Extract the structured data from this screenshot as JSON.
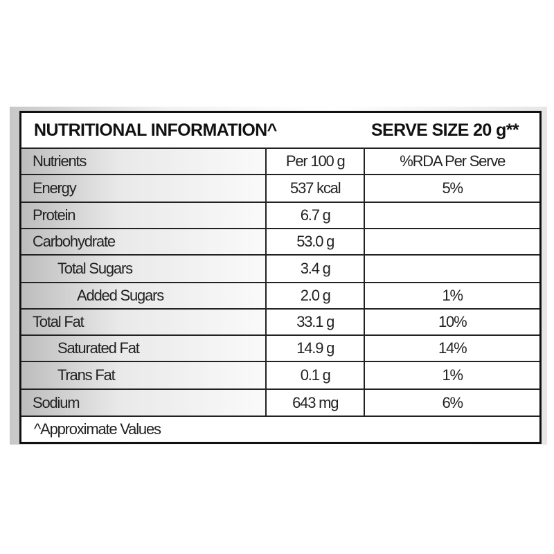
{
  "header": {
    "title": "NUTRITIONAL INFORMATION^",
    "serve_size": "SERVE SIZE 20 g**"
  },
  "table": {
    "columns": [
      "Nutrients",
      "Per 100 g",
      "%RDA Per Serve"
    ],
    "rows": [
      [
        "Energy",
        "537 kcal",
        "5%"
      ],
      [
        "Protein",
        "6.7 g"
      ],
      [
        "Carbohydrate",
        "53.0 g"
      ],
      [
        "Total Sugars",
        "3.4 g"
      ],
      [
        "Added Sugars",
        "2.0 g",
        "1%"
      ],
      [
        "Total Fat",
        "33.1 g",
        "10%"
      ],
      [
        "Saturated Fat",
        "14.9 g",
        "14%"
      ],
      [
        "Trans Fat",
        "0.1 g",
        "1%"
      ],
      [
        "Sodium",
        "643 mg",
        "6%"
      ]
    ]
  },
  "footer": "^Approximate Values"
}
